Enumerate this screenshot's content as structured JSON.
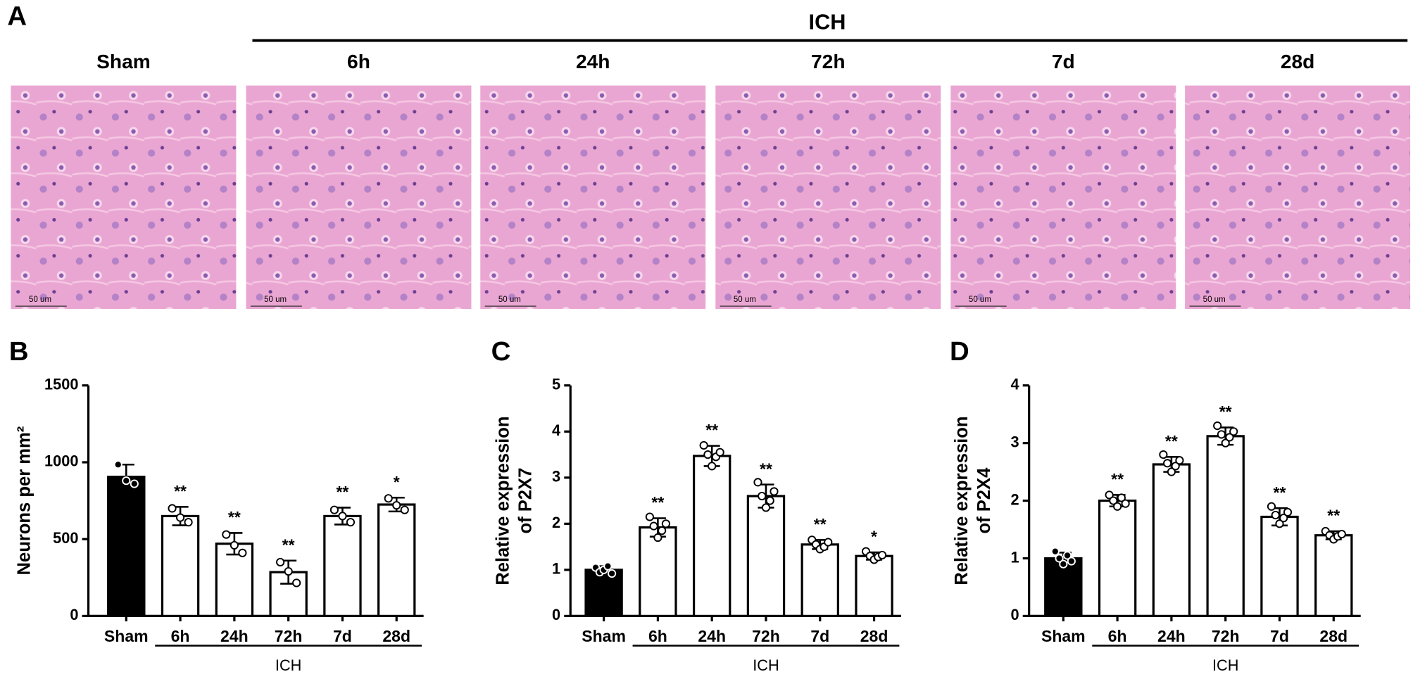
{
  "histology": {
    "label": "A",
    "group_label": "ICH",
    "titles": [
      "Sham",
      "6h",
      "24h",
      "72h",
      "7d",
      "28d"
    ],
    "scale_bar": "50 um"
  },
  "chart_data": [
    {
      "type": "bar",
      "panel_label": "B",
      "ylabel": "Neurons per mm²",
      "group_label": "ICH",
      "categories": [
        "Sham",
        "6h",
        "24h",
        "72h",
        "7d",
        "28d"
      ],
      "values": [
        905,
        650,
        470,
        285,
        650,
        725
      ],
      "errors": [
        80,
        60,
        70,
        75,
        55,
        45
      ],
      "points": [
        [
          985,
          880,
          860
        ],
        [
          700,
          640,
          610
        ],
        [
          530,
          460,
          410
        ],
        [
          350,
          290,
          215
        ],
        [
          690,
          650,
          610
        ],
        [
          765,
          720,
          690
        ]
      ],
      "stars": [
        null,
        "**",
        "**",
        "**",
        "**",
        "*"
      ],
      "bar_colors": [
        "#000000",
        "#ffffff",
        "#ffffff",
        "#ffffff",
        "#ffffff",
        "#ffffff"
      ],
      "ylim": [
        0,
        1500
      ],
      "yticks": [
        0,
        500,
        1000,
        1500
      ]
    },
    {
      "type": "bar",
      "panel_label": "C",
      "ylabel": "Relative expression of P2X7",
      "group_label": "ICH",
      "categories": [
        "Sham",
        "6h",
        "24h",
        "72h",
        "7d",
        "28d"
      ],
      "values": [
        1.0,
        1.92,
        3.47,
        2.6,
        1.55,
        1.3
      ],
      "errors": [
        0.08,
        0.2,
        0.22,
        0.25,
        0.1,
        0.08
      ],
      "points": [
        [
          1.05,
          0.95,
          1.0,
          1.08,
          0.92
        ],
        [
          2.15,
          1.95,
          1.7,
          1.85,
          2.0
        ],
        [
          3.7,
          3.5,
          3.25,
          3.45,
          3.55
        ],
        [
          2.9,
          2.6,
          2.35,
          2.5,
          2.7
        ],
        [
          1.65,
          1.55,
          1.45,
          1.5,
          1.6
        ],
        [
          1.4,
          1.3,
          1.22,
          1.28,
          1.32
        ]
      ],
      "stars": [
        null,
        "**",
        "**",
        "**",
        "**",
        "*"
      ],
      "bar_colors": [
        "#000000",
        "#ffffff",
        "#ffffff",
        "#ffffff",
        "#ffffff",
        "#ffffff"
      ],
      "ylim": [
        0,
        5
      ],
      "yticks": [
        0,
        1,
        2,
        3,
        4,
        5
      ]
    },
    {
      "type": "bar",
      "panel_label": "D",
      "ylabel": "Relative expression of P2X4",
      "group_label": "ICH",
      "categories": [
        "Sham",
        "6h",
        "24h",
        "72h",
        "7d",
        "28d"
      ],
      "values": [
        1.0,
        2.0,
        2.63,
        3.12,
        1.72,
        1.4
      ],
      "errors": [
        0.1,
        0.1,
        0.13,
        0.15,
        0.15,
        0.07
      ],
      "points": [
        [
          1.12,
          1.0,
          0.9,
          1.05,
          0.95
        ],
        [
          2.1,
          2.0,
          1.9,
          2.05,
          1.95
        ],
        [
          2.8,
          2.65,
          2.5,
          2.6,
          2.7
        ],
        [
          3.3,
          3.15,
          3.0,
          3.1,
          3.2
        ],
        [
          1.9,
          1.75,
          1.6,
          1.7,
          1.8
        ],
        [
          1.47,
          1.4,
          1.33,
          1.38,
          1.42
        ]
      ],
      "stars": [
        null,
        "**",
        "**",
        "**",
        "**",
        "**"
      ],
      "bar_colors": [
        "#000000",
        "#ffffff",
        "#ffffff",
        "#ffffff",
        "#ffffff",
        "#ffffff"
      ],
      "ylim": [
        0,
        4
      ],
      "yticks": [
        0,
        1,
        2,
        3,
        4
      ]
    }
  ]
}
